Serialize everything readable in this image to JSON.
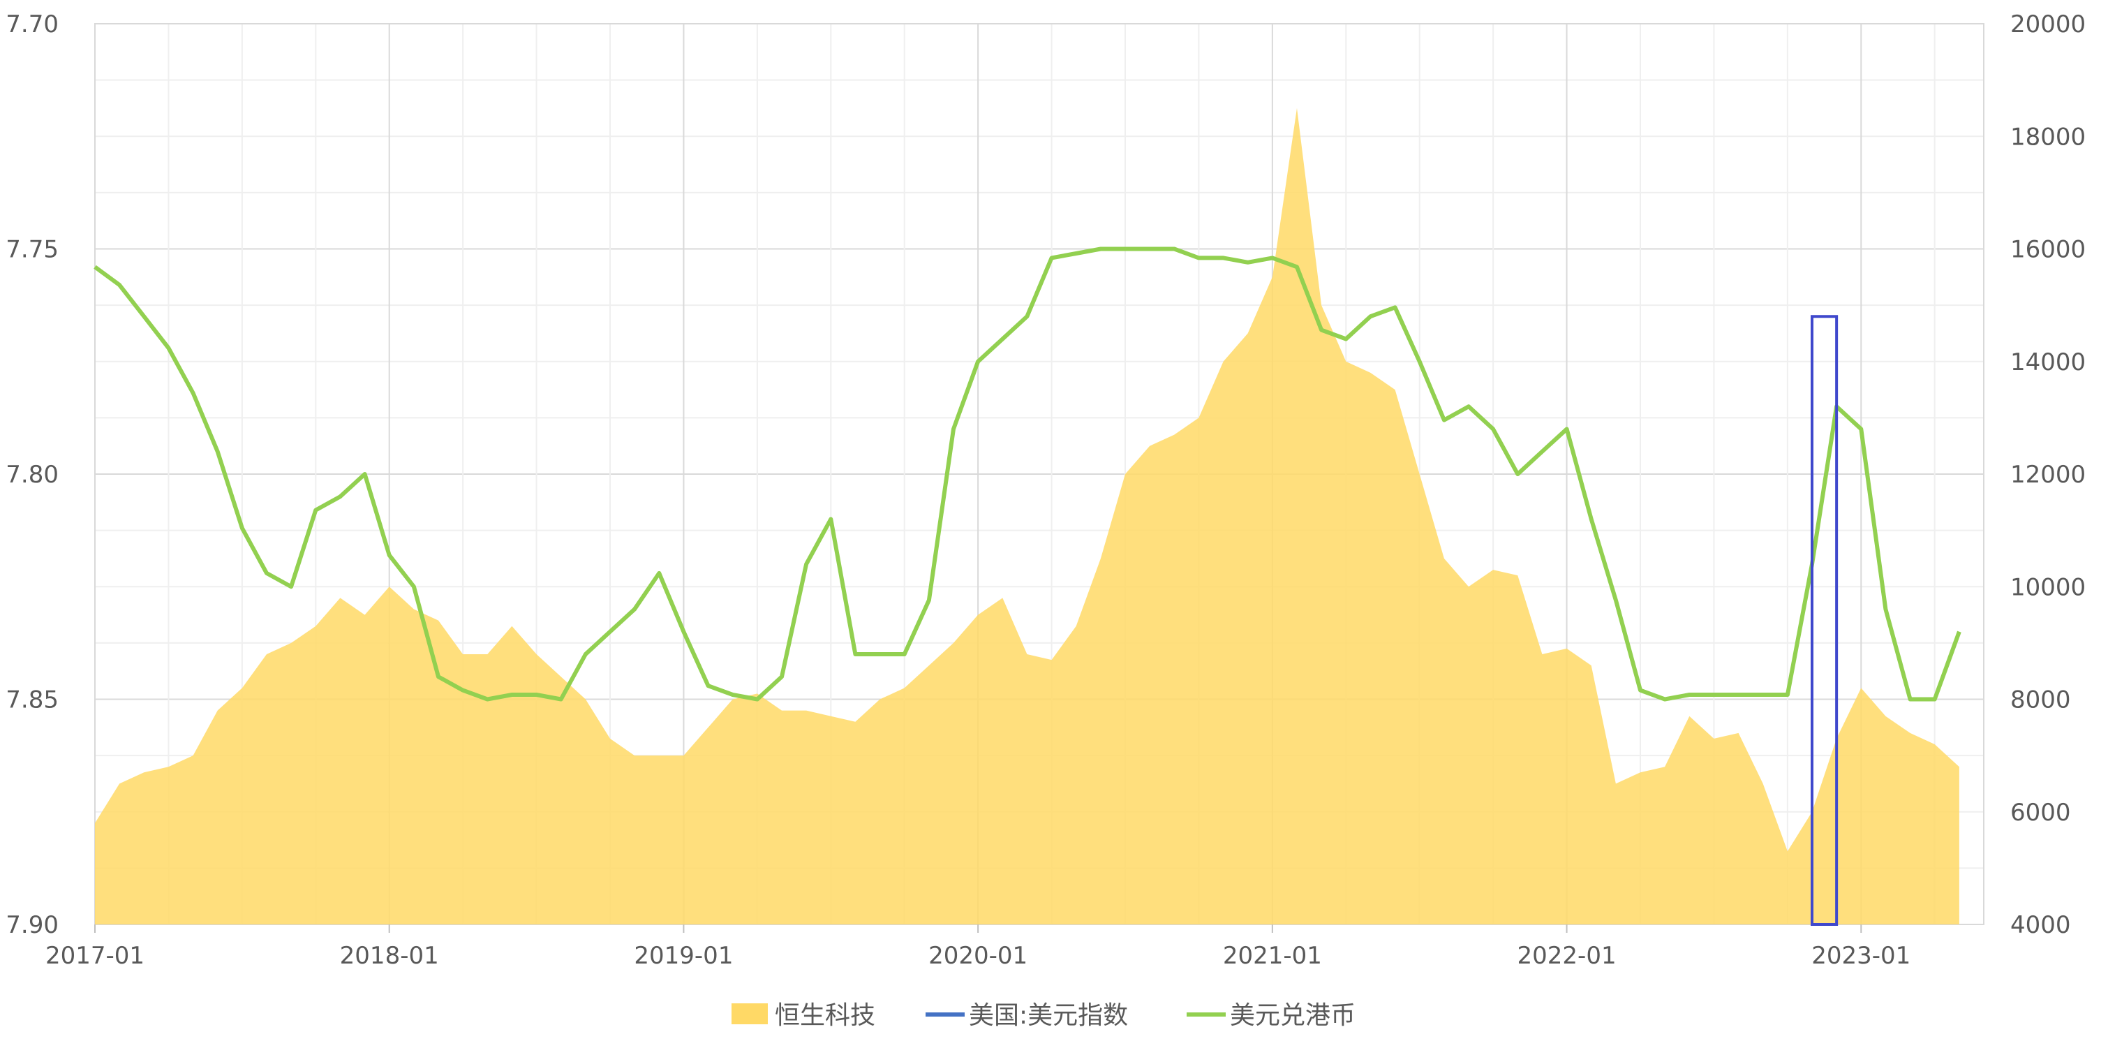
{
  "chart_data": {
    "type": "area+line",
    "title": "",
    "x_axis": {
      "type": "date",
      "range": [
        "2017-01",
        "2023-05"
      ],
      "tick_labels": [
        "2017-01",
        "2018-01",
        "2019-01",
        "2020-01",
        "2021-01",
        "2022-01",
        "2023-01"
      ]
    },
    "y_left": {
      "range": [
        7.7,
        7.9
      ],
      "inverted": true,
      "tick_labels": [
        "7.70",
        "7.75",
        "7.80",
        "7.85",
        "7.90"
      ]
    },
    "y_right": {
      "range": [
        4000,
        20000
      ],
      "tick_labels": [
        "20000",
        "18000",
        "16000",
        "14000",
        "12000",
        "10000",
        "8000",
        "6000",
        "4000"
      ]
    },
    "grid": true,
    "legend_position": "bottom",
    "series": [
      {
        "name": "恒生科技",
        "type": "area",
        "axis": "right",
        "color": "#FFD966",
        "points": [
          [
            "2017-01",
            5800
          ],
          [
            "2017-02",
            6500
          ],
          [
            "2017-03",
            6700
          ],
          [
            "2017-04",
            6800
          ],
          [
            "2017-05",
            7000
          ],
          [
            "2017-06",
            7800
          ],
          [
            "2017-07",
            8200
          ],
          [
            "2017-08",
            8800
          ],
          [
            "2017-09",
            9000
          ],
          [
            "2017-10",
            9300
          ],
          [
            "2017-11",
            9800
          ],
          [
            "2017-12",
            9500
          ],
          [
            "2018-01",
            10000
          ],
          [
            "2018-02",
            9600
          ],
          [
            "2018-03",
            9400
          ],
          [
            "2018-04",
            8800
          ],
          [
            "2018-05",
            8800
          ],
          [
            "2018-06",
            9300
          ],
          [
            "2018-07",
            8800
          ],
          [
            "2018-08",
            8400
          ],
          [
            "2018-09",
            8000
          ],
          [
            "2018-10",
            7300
          ],
          [
            "2018-11",
            7000
          ],
          [
            "2018-12",
            7000
          ],
          [
            "2019-01",
            7000
          ],
          [
            "2019-02",
            7500
          ],
          [
            "2019-03",
            8000
          ],
          [
            "2019-04",
            8100
          ],
          [
            "2019-05",
            7800
          ],
          [
            "2019-06",
            7800
          ],
          [
            "2019-07",
            7700
          ],
          [
            "2019-08",
            7600
          ],
          [
            "2019-09",
            8000
          ],
          [
            "2019-10",
            8200
          ],
          [
            "2019-11",
            8600
          ],
          [
            "2019-12",
            9000
          ],
          [
            "2020-01",
            9500
          ],
          [
            "2020-02",
            9800
          ],
          [
            "2020-03",
            8800
          ],
          [
            "2020-04",
            8700
          ],
          [
            "2020-05",
            9300
          ],
          [
            "2020-06",
            10500
          ],
          [
            "2020-07",
            12000
          ],
          [
            "2020-08",
            12500
          ],
          [
            "2020-09",
            12700
          ],
          [
            "2020-10",
            13000
          ],
          [
            "2020-11",
            14000
          ],
          [
            "2020-12",
            14500
          ],
          [
            "2021-01",
            15500
          ],
          [
            "2021-02",
            18500
          ],
          [
            "2021-03",
            15000
          ],
          [
            "2021-04",
            14000
          ],
          [
            "2021-05",
            13800
          ],
          [
            "2021-06",
            13500
          ],
          [
            "2021-07",
            12000
          ],
          [
            "2021-08",
            10500
          ],
          [
            "2021-09",
            10000
          ],
          [
            "2021-10",
            10300
          ],
          [
            "2021-11",
            10200
          ],
          [
            "2021-12",
            8800
          ],
          [
            "2022-01",
            8900
          ],
          [
            "2022-02",
            8600
          ],
          [
            "2022-03",
            6500
          ],
          [
            "2022-04",
            6700
          ],
          [
            "2022-05",
            6800
          ],
          [
            "2022-06",
            7700
          ],
          [
            "2022-07",
            7300
          ],
          [
            "2022-08",
            7400
          ],
          [
            "2022-09",
            6500
          ],
          [
            "2022-10",
            5300
          ],
          [
            "2022-11",
            6000
          ],
          [
            "2022-12",
            7300
          ],
          [
            "2023-01",
            8200
          ],
          [
            "2023-02",
            7700
          ],
          [
            "2023-03",
            7400
          ],
          [
            "2023-04",
            7200
          ],
          [
            "2023-05",
            6800
          ]
        ]
      },
      {
        "name": "美国:美元指数",
        "type": "line",
        "axis": "right",
        "color": "#4472C4",
        "points": []
      },
      {
        "name": "美元兑港币",
        "type": "line",
        "axis": "left",
        "color": "#92D050",
        "points": [
          [
            "2017-01",
            7.754
          ],
          [
            "2017-02",
            7.758
          ],
          [
            "2017-03",
            7.765
          ],
          [
            "2017-04",
            7.772
          ],
          [
            "2017-05",
            7.782
          ],
          [
            "2017-06",
            7.795
          ],
          [
            "2017-07",
            7.812
          ],
          [
            "2017-08",
            7.822
          ],
          [
            "2017-09",
            7.825
          ],
          [
            "2017-10",
            7.808
          ],
          [
            "2017-11",
            7.805
          ],
          [
            "2017-12",
            7.8
          ],
          [
            "2018-01",
            7.818
          ],
          [
            "2018-02",
            7.825
          ],
          [
            "2018-03",
            7.845
          ],
          [
            "2018-04",
            7.848
          ],
          [
            "2018-05",
            7.85
          ],
          [
            "2018-06",
            7.849
          ],
          [
            "2018-07",
            7.849
          ],
          [
            "2018-08",
            7.85
          ],
          [
            "2018-09",
            7.84
          ],
          [
            "2018-10",
            7.835
          ],
          [
            "2018-11",
            7.83
          ],
          [
            "2018-12",
            7.822
          ],
          [
            "2019-01",
            7.835
          ],
          [
            "2019-02",
            7.847
          ],
          [
            "2019-03",
            7.849
          ],
          [
            "2019-04",
            7.85
          ],
          [
            "2019-05",
            7.845
          ],
          [
            "2019-06",
            7.82
          ],
          [
            "2019-07",
            7.81
          ],
          [
            "2019-08",
            7.84
          ],
          [
            "2019-09",
            7.84
          ],
          [
            "2019-10",
            7.84
          ],
          [
            "2019-11",
            7.828
          ],
          [
            "2019-12",
            7.79
          ],
          [
            "2020-01",
            7.775
          ],
          [
            "2020-02",
            7.77
          ],
          [
            "2020-03",
            7.765
          ],
          [
            "2020-04",
            7.752
          ],
          [
            "2020-05",
            7.751
          ],
          [
            "2020-06",
            7.75
          ],
          [
            "2020-07",
            7.75
          ],
          [
            "2020-08",
            7.75
          ],
          [
            "2020-09",
            7.75
          ],
          [
            "2020-10",
            7.752
          ],
          [
            "2020-11",
            7.752
          ],
          [
            "2020-12",
            7.753
          ],
          [
            "2021-01",
            7.752
          ],
          [
            "2021-02",
            7.754
          ],
          [
            "2021-03",
            7.768
          ],
          [
            "2021-04",
            7.77
          ],
          [
            "2021-05",
            7.765
          ],
          [
            "2021-06",
            7.763
          ],
          [
            "2021-07",
            7.775
          ],
          [
            "2021-08",
            7.788
          ],
          [
            "2021-09",
            7.785
          ],
          [
            "2021-10",
            7.79
          ],
          [
            "2021-11",
            7.8
          ],
          [
            "2021-12",
            7.795
          ],
          [
            "2022-01",
            7.79
          ],
          [
            "2022-02",
            7.81
          ],
          [
            "2022-03",
            7.828
          ],
          [
            "2022-04",
            7.848
          ],
          [
            "2022-05",
            7.85
          ],
          [
            "2022-06",
            7.849
          ],
          [
            "2022-07",
            7.849
          ],
          [
            "2022-08",
            7.849
          ],
          [
            "2022-09",
            7.849
          ],
          [
            "2022-10",
            7.849
          ],
          [
            "2022-11",
            7.82
          ],
          [
            "2022-12",
            7.785
          ],
          [
            "2023-01",
            7.79
          ],
          [
            "2023-02",
            7.83
          ],
          [
            "2023-03",
            7.85
          ],
          [
            "2023-04",
            7.85
          ],
          [
            "2023-05",
            7.835
          ]
        ]
      }
    ],
    "highlight_box": {
      "from": "2022-11",
      "to": "2022-12",
      "y_top": 14800,
      "y_bottom": 4000,
      "color": "#3F48CC"
    }
  }
}
